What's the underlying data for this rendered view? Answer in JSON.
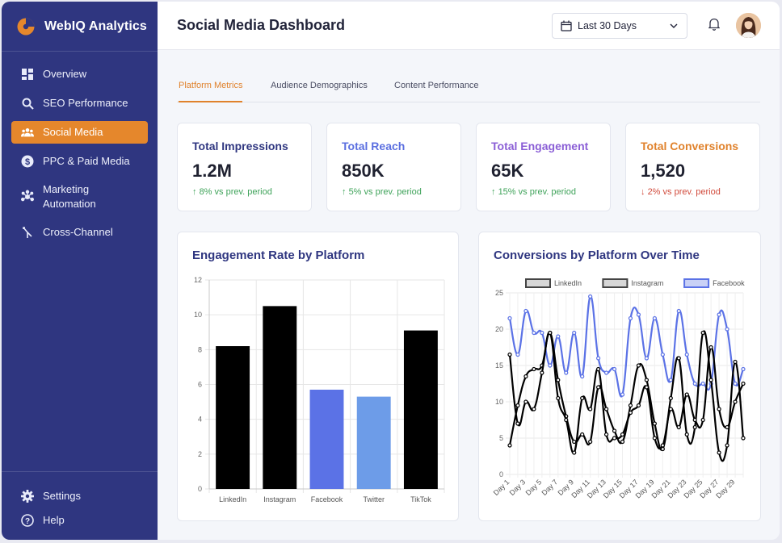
{
  "app": {
    "name": "WebIQ Analytics"
  },
  "sidebar": {
    "items": [
      {
        "label": "Overview",
        "icon": "grid-icon",
        "active": false
      },
      {
        "label": "SEO Performance",
        "icon": "search-icon",
        "active": false
      },
      {
        "label": "Social Media",
        "icon": "users-icon",
        "active": true
      },
      {
        "label": "PPC & Paid Media",
        "icon": "dollar-icon",
        "active": false
      },
      {
        "label": "Marketing Automation",
        "icon": "hub-icon",
        "active": false
      },
      {
        "label": "Cross-Channel",
        "icon": "merge-icon",
        "active": false
      }
    ],
    "bottom": [
      {
        "label": "Settings",
        "icon": "gear-icon"
      },
      {
        "label": "Help",
        "icon": "help-icon"
      }
    ]
  },
  "header": {
    "title": "Social Media Dashboard",
    "date_range": "Last 30 Days"
  },
  "tabs": [
    {
      "label": "Platform Metrics",
      "active": true
    },
    {
      "label": "Audience Demographics",
      "active": false
    },
    {
      "label": "Content Performance",
      "active": false
    }
  ],
  "kpis": [
    {
      "title": "Total Impressions",
      "value": "1.2M",
      "delta": "8% vs prev. period",
      "direction": "up",
      "color": "#2f3680"
    },
    {
      "title": "Total Reach",
      "value": "850K",
      "delta": "5% vs prev. period",
      "direction": "up",
      "color": "#5b6fe0"
    },
    {
      "title": "Total Engagement",
      "value": "65K",
      "delta": "15% vs prev. period",
      "direction": "up",
      "color": "#8b5fd6"
    },
    {
      "title": "Total Conversions",
      "value": "1,520",
      "delta": "2% vs prev. period",
      "direction": "down",
      "color": "#e0822c"
    }
  ],
  "chart_data": [
    {
      "type": "bar",
      "title": "Engagement Rate by Platform",
      "categories": [
        "LinkedIn",
        "Instagram",
        "Facebook",
        "Twitter",
        "TikTok"
      ],
      "values": [
        8.2,
        10.5,
        5.7,
        5.3,
        9.1
      ],
      "colors": [
        "#000000",
        "#000000",
        "#5b72e6",
        "#6d9ce8",
        "#000000"
      ],
      "ylim": [
        0,
        12
      ],
      "yticks": [
        0,
        2,
        4,
        6,
        8,
        10,
        12
      ],
      "grid": true
    },
    {
      "type": "line",
      "title": "Conversions by Platform Over Time",
      "x": [
        "Day 1",
        "Day 2",
        "Day 3",
        "Day 4",
        "Day 5",
        "Day 6",
        "Day 7",
        "Day 8",
        "Day 9",
        "Day 10",
        "Day 11",
        "Day 12",
        "Day 13",
        "Day 14",
        "Day 15",
        "Day 16",
        "Day 17",
        "Day 18",
        "Day 19",
        "Day 20",
        "Day 21",
        "Day 22",
        "Day 23",
        "Day 24",
        "Day 25",
        "Day 26",
        "Day 27",
        "Day 28",
        "Day 29",
        "Day 30"
      ],
      "xticks": [
        "Day 1",
        "Day 3",
        "Day 5",
        "Day 7",
        "Day 9",
        "Day 11",
        "Day 13",
        "Day 15",
        "Day 17",
        "Day 19",
        "Day 21",
        "Day 23",
        "Day 25",
        "Day 27",
        "Day 29"
      ],
      "ylim": [
        0,
        25
      ],
      "yticks": [
        0,
        5,
        10,
        15,
        20,
        25
      ],
      "legend": "top",
      "grid": true,
      "series": [
        {
          "name": "LinkedIn",
          "color": "#000000",
          "values": [
            16.5,
            7,
            10,
            9,
            14,
            19.5,
            10.5,
            7.5,
            3,
            10.5,
            9,
            14.5,
            5.5,
            5,
            5.5,
            8.5,
            9.5,
            12,
            5,
            4,
            9,
            6.5,
            11,
            7.5,
            7.5,
            17.5,
            9,
            6.5,
            10,
            12.5
          ]
        },
        {
          "name": "Instagram",
          "color": "#000000",
          "values": [
            4,
            9.5,
            13.5,
            14.5,
            15,
            19.5,
            13,
            8,
            4.5,
            5.5,
            4.5,
            12,
            9,
            6,
            4.5,
            9.5,
            15,
            13,
            7,
            3.5,
            10.5,
            16,
            5.5,
            6.5,
            19.5,
            13,
            3,
            4,
            15.5,
            5
          ]
        },
        {
          "name": "Facebook",
          "color": "#5b72e6",
          "values": [
            21.5,
            16.5,
            22.5,
            19.5,
            19.5,
            15,
            19,
            14,
            19.5,
            13.5,
            24.5,
            16,
            14,
            14.5,
            11,
            21.5,
            22,
            16,
            21.5,
            16.5,
            13,
            22.5,
            16.5,
            12.5,
            12.5,
            12.5,
            22,
            20,
            12.5,
            14.5
          ]
        }
      ]
    }
  ]
}
